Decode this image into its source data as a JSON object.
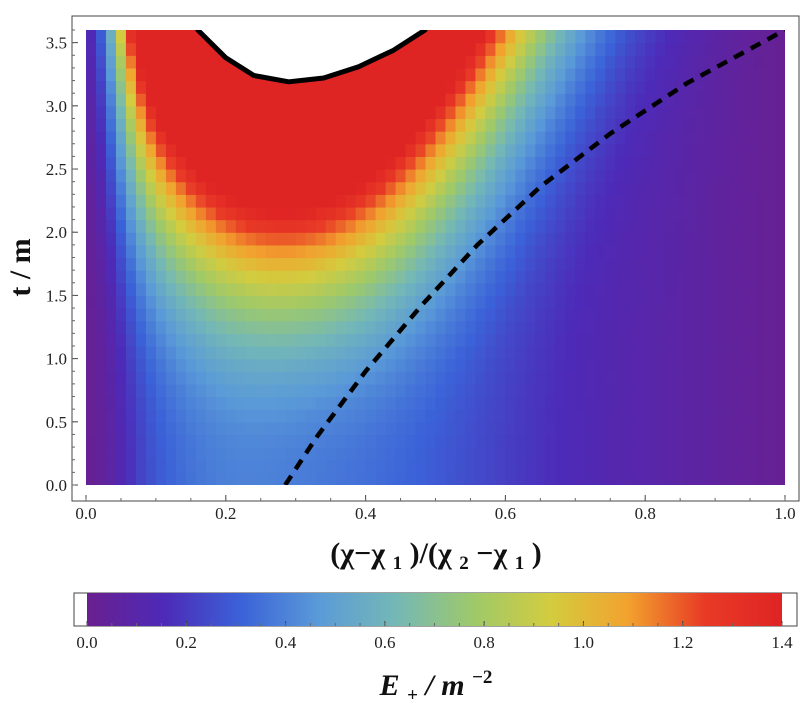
{
  "chart_data": [
    {
      "type": "heatmap",
      "title": "",
      "xlabel_parts": [
        "(χ−χ",
        "1",
        ")/(χ",
        "2",
        "−χ",
        "1",
        ")"
      ],
      "ylabel": "t / m",
      "xlim": [
        0.0,
        1.0
      ],
      "ylim": [
        0.0,
        3.6
      ],
      "xticks": [
        0.0,
        0.2,
        0.4,
        0.6,
        0.8,
        1.0
      ],
      "xtick_labels": [
        "0.0",
        "0.2",
        "0.4",
        "0.6",
        "0.8",
        "1.0"
      ],
      "yticks": [
        0.0,
        0.5,
        1.0,
        1.5,
        2.0,
        2.5,
        3.0,
        3.5
      ],
      "ytick_labels": [
        "0.0",
        "0.5",
        "1.0",
        "1.5",
        "2.0",
        "2.5",
        "3.0",
        "3.5"
      ],
      "grid": false,
      "colorscale": [
        "#6a1f8f",
        "#4d2ab8",
        "#3b62d8",
        "#5a9ad8",
        "#74b8b6",
        "#9ec96a",
        "#d3cc3f",
        "#f2a22e",
        "#e83a26",
        "#df2424"
      ],
      "saturated_color": "#df2424",
      "field_description_values": {
        "min_value": 0.0,
        "max_value": 1.4,
        "peak_x": 0.29,
        "saturation_boundary_min_t": 2.2
      },
      "series": [
        {
          "style": "solid",
          "x": [
            0.16,
            0.2,
            0.24,
            0.29,
            0.34,
            0.39,
            0.44,
            0.485
          ],
          "y": [
            3.6,
            3.38,
            3.24,
            3.19,
            3.22,
            3.31,
            3.44,
            3.6
          ]
        },
        {
          "style": "dashed",
          "x": [
            0.285,
            0.33,
            0.4,
            0.48,
            0.56,
            0.65,
            0.75,
            0.86,
            1.0
          ],
          "y": [
            0.0,
            0.38,
            0.9,
            1.42,
            1.9,
            2.36,
            2.78,
            3.18,
            3.6
          ]
        }
      ]
    },
    {
      "type": "colorbar",
      "label_parts": [
        "E",
        "+",
        " / m",
        "−2"
      ],
      "range": [
        0.0,
        1.4
      ],
      "ticks": [
        0.0,
        0.2,
        0.4,
        0.6,
        0.8,
        1.0,
        1.2,
        1.4
      ],
      "tick_labels": [
        "0.0",
        "0.2",
        "0.4",
        "0.6",
        "0.8",
        "1.0",
        "1.2",
        "1.4"
      ]
    }
  ]
}
